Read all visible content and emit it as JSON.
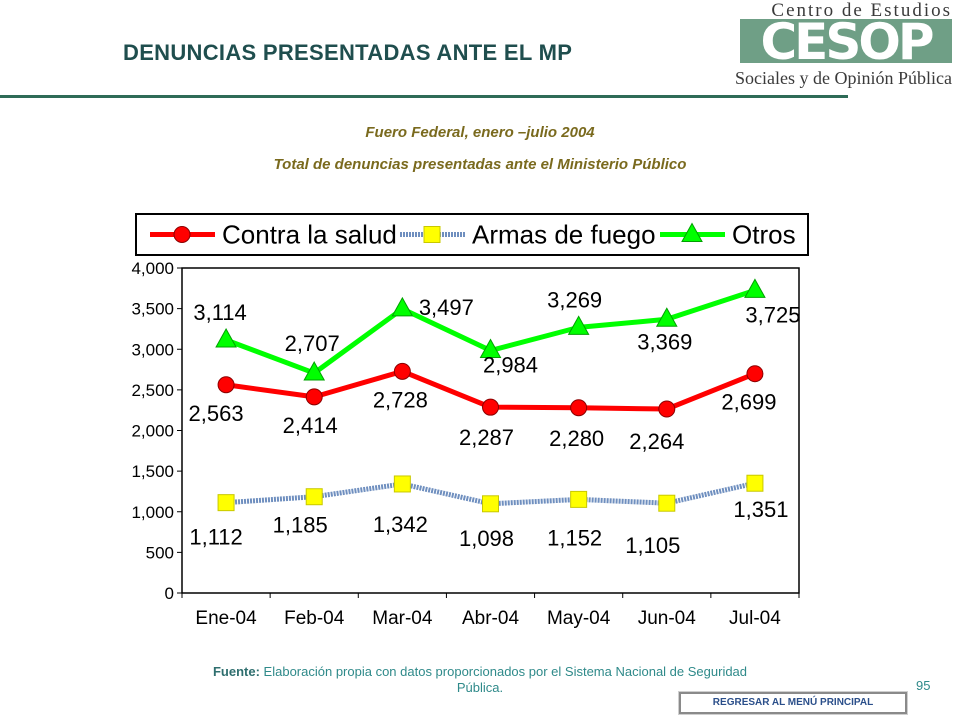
{
  "header": {
    "title": "DENUNCIAS PRESENTADAS ANTE EL MP",
    "logo_top": "Centro de Estudios",
    "logo_mark": "CESOP",
    "logo_bottom": "Sociales y de Opinión Pública"
  },
  "subtitle_1": "Fuero Federal, enero –julio 2004",
  "subtitle_2": "Total de denuncias presentadas ante el Ministerio Público",
  "footer": {
    "source_label": "Fuente:",
    "source_text": "Elaboración propia con datos proporcionados por el Sistema Nacional de Seguridad Pública.",
    "page_number": "95",
    "menu_button": "REGRESAR AL MENÚ PRINCIPAL"
  },
  "colors": {
    "contra_la_salud": "#ff0000",
    "armas_de_fuego": "#6f8fbf",
    "armas_marker": "#ffff00",
    "otros": "#00ff00",
    "title": "#1f4e4e",
    "subtitle": "#7a6a1e",
    "rule": "#2e6b57"
  },
  "chart_data": {
    "type": "line",
    "categories": [
      "Ene-04",
      "Feb-04",
      "Mar-04",
      "Abr-04",
      "May-04",
      "Jun-04",
      "Jul-04"
    ],
    "series": [
      {
        "name": "Contra la salud",
        "values": [
          2563,
          2414,
          2728,
          2287,
          2280,
          2264,
          2699
        ],
        "labels": [
          "2,563",
          "2,414",
          "2,728",
          "2,287",
          "2,280",
          "2,264",
          "2,699"
        ],
        "marker": "circle"
      },
      {
        "name": "Armas de fuego",
        "values": [
          1112,
          1185,
          1342,
          1098,
          1152,
          1105,
          1351
        ],
        "labels": [
          "1,112",
          "1,185",
          "1,342",
          "1,098",
          "1,152",
          "1,105",
          "1,351"
        ],
        "marker": "square"
      },
      {
        "name": "Otros",
        "values": [
          3114,
          2707,
          3497,
          2984,
          3269,
          3369,
          3725
        ],
        "labels": [
          "3,114",
          "2,707",
          "3,497",
          "2,984",
          "3,269",
          "3,369",
          "3,725"
        ],
        "marker": "triangle"
      }
    ],
    "y_ticks": [
      "0",
      "500",
      "1,000",
      "1,500",
      "2,000",
      "2,500",
      "3,000",
      "3,500",
      "4,000"
    ],
    "ylim": [
      0,
      4000
    ],
    "grid": false,
    "legend_position": "top"
  }
}
